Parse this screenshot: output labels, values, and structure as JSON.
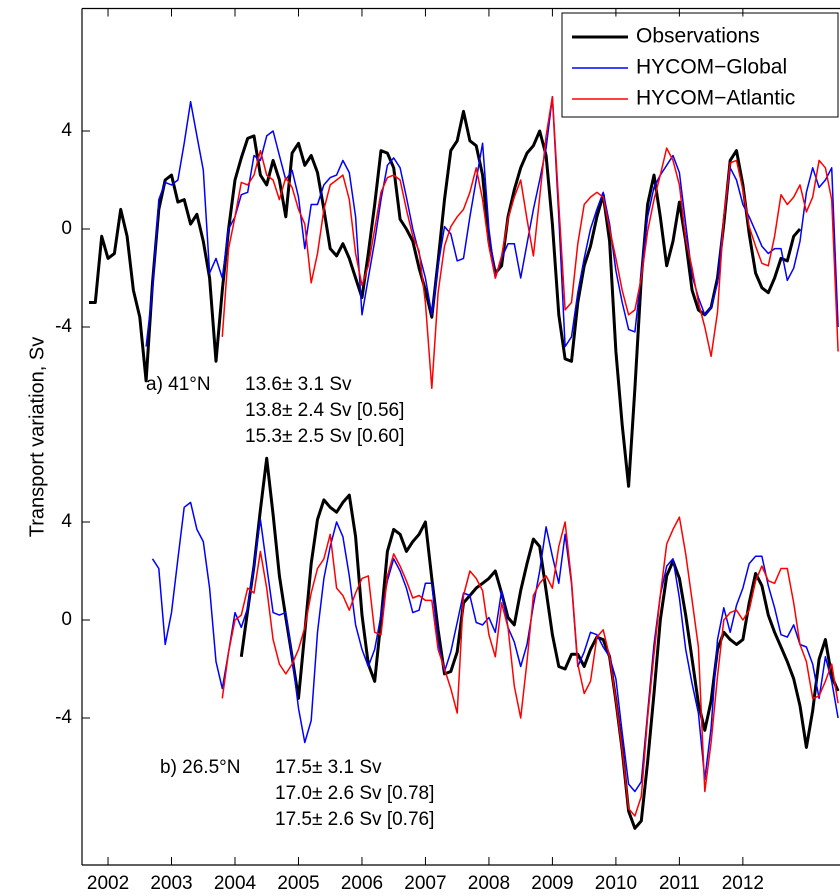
{
  "chart_data": [
    {
      "type": "line",
      "ylabel": "Transport variation, Sv",
      "legend": "upper right",
      "label": "a) 41°N",
      "annotations": [
        {
          "text": "13.6± 3.1 Sv",
          "color": "#000000"
        },
        {
          "text": "13.8± 2.4 Sv [0.56]",
          "color": "#0000ff"
        },
        {
          "text": "15.3± 2.5 Sv [0.60]",
          "color": "#ff0000"
        }
      ],
      "xlim": [
        2001.59,
        2013.53
      ],
      "ylim": [
        -8,
        9
      ],
      "yticks": [
        -4,
        0,
        4
      ],
      "x": [
        2001.6,
        2001.7,
        2001.8,
        2001.9,
        2002,
        2002.1,
        2002.2,
        2002.3,
        2002.4,
        2002.5,
        2002.6,
        2002.7,
        2002.8,
        2002.9,
        2003,
        2003.1,
        2003.2,
        2003.3,
        2003.4,
        2003.5,
        2003.6,
        2003.7,
        2003.8,
        2003.9,
        2004,
        2004.1,
        2004.2,
        2004.3,
        2004.4,
        2004.5,
        2004.6,
        2004.7,
        2004.8,
        2004.9,
        2005,
        2005.1,
        2005.2,
        2005.3,
        2005.4,
        2005.5,
        2005.6,
        2005.7,
        2005.8,
        2005.9,
        2006,
        2006.1,
        2006.2,
        2006.3,
        2006.4,
        2006.5,
        2006.6,
        2006.7,
        2006.8,
        2006.9,
        2007,
        2007.1,
        2007.2,
        2007.3,
        2007.4,
        2007.5,
        2007.6,
        2007.7,
        2007.8,
        2007.9,
        2008,
        2008.1,
        2008.2,
        2008.3,
        2008.4,
        2008.5,
        2008.6,
        2008.7,
        2008.8,
        2008.9,
        2009,
        2009.1,
        2009.2,
        2009.3,
        2009.4,
        2009.5,
        2009.6,
        2009.7,
        2009.8,
        2009.9,
        2010,
        2010.1,
        2010.2,
        2010.3,
        2010.4,
        2010.5,
        2010.6,
        2010.7,
        2010.8,
        2010.9,
        2011,
        2011.1,
        2011.2,
        2011.3,
        2011.4,
        2011.5,
        2011.6,
        2011.7,
        2011.8,
        2011.9,
        2012,
        2012.1,
        2012.2,
        2012.3,
        2012.4,
        2012.5,
        2012.6,
        2012.7,
        2012.8,
        2012.9,
        2013,
        2013.1,
        2013.2,
        2013.3,
        2013.4,
        2013.5
      ],
      "series": [
        {
          "name": "Observations",
          "color": "#000000",
          "width": 3,
          "values": [
            null,
            -3,
            -3,
            -0.3,
            -1.2,
            -1,
            0.8,
            -0.3,
            -2.5,
            -3.6,
            -6.2,
            -2.2,
            0.8,
            2,
            2.2,
            1.1,
            1.2,
            0.2,
            0.6,
            -0.5,
            -2,
            -5.4,
            -2.5,
            0,
            2,
            2.9,
            3.7,
            3.8,
            2.2,
            1.8,
            2.8,
            2,
            0.5,
            3.1,
            3.5,
            2.6,
            3,
            2.3,
            0.8,
            -0.8,
            -1.1,
            -0.6,
            -1.2,
            -2,
            -2.8,
            -1,
            1,
            3.2,
            3.1,
            2.5,
            0.4,
            0,
            -0.5,
            -1.6,
            -2.5,
            -3.6,
            -1.3,
            1.2,
            3.2,
            3.6,
            4.8,
            3.6,
            3.4,
            2.2,
            -0.5,
            -1.8,
            -1.5,
            0.5,
            1.6,
            2.5,
            3.1,
            3.4,
            4,
            3,
            0.2,
            -3.5,
            -5.3,
            -5.4,
            -3,
            -1.5,
            -0.7,
            0.5,
            1.4,
            -0.5,
            -5,
            -8,
            -10.5,
            -6.5,
            -2,
            1,
            2.2,
            0.5,
            -1.5,
            -0.5,
            1.1,
            -0.5,
            -2.5,
            -3.3,
            -3.5,
            -3.2,
            -2,
            0.2,
            2.8,
            3.2,
            1.8,
            -0.2,
            -1.8,
            -2.4,
            -2.6,
            -2,
            -1.2,
            -1.3,
            -0.3,
            0,
            null,
            null,
            null,
            null,
            null,
            null
          ]
        },
        {
          "name": "HYCOM−Global",
          "color": "#0000ff",
          "width": 1.5,
          "values": [
            null,
            null,
            null,
            null,
            null,
            null,
            null,
            null,
            null,
            null,
            -4.8,
            -2.5,
            1.2,
            1.9,
            1.8,
            2,
            3.5,
            5.2,
            3.8,
            2.4,
            -1.8,
            -1.2,
            -2,
            0,
            0.5,
            1.4,
            1.5,
            3,
            2.8,
            3.8,
            4,
            3,
            2,
            2.4,
            1.3,
            -0.8,
            1,
            1,
            1.8,
            2.1,
            2.2,
            2.8,
            2.3,
            0.5,
            -3.5,
            -2,
            -0.5,
            1.2,
            2.6,
            2.9,
            2.5,
            1.3,
            0,
            -1,
            -2,
            -3.5,
            -1.5,
            0.1,
            -0.2,
            -1.3,
            -1.2,
            0.5,
            2,
            3.5,
            0,
            -2,
            -1.2,
            -0.6,
            -0.6,
            -2,
            -0.6,
            0.8,
            2,
            3.3,
            5.4,
            0.5,
            -4.8,
            -4.4,
            -2.6,
            -1.2,
            0,
            0.8,
            1.5,
            0.2,
            -1.7,
            -3,
            -4.1,
            -4.2,
            -1.8,
            0.5,
            1.7,
            2.2,
            2.6,
            3,
            2.3,
            0.2,
            -1.9,
            -2.8,
            -3.5,
            -3.2,
            -2.2,
            0.5,
            2.5,
            2,
            1,
            0.5,
            -0.1,
            -0.7,
            -1,
            -0.8,
            -0.8,
            -2.1,
            -1.6,
            -0.5,
            1.5,
            2.5,
            1.7,
            2,
            2.5,
            -4
          ]
        },
        {
          "name": "HYCOM−Atlantic",
          "color": "#ff0000",
          "width": 1.5,
          "values": [
            null,
            null,
            null,
            null,
            null,
            null,
            null,
            null,
            null,
            null,
            null,
            null,
            null,
            null,
            null,
            null,
            null,
            null,
            null,
            null,
            null,
            null,
            -4.4,
            -0.8,
            0.5,
            1.9,
            1.8,
            2.2,
            3.2,
            2.2,
            2,
            1.2,
            2.1,
            1.7,
            0.8,
            0.2,
            -2.2,
            -1,
            0.8,
            1.8,
            2,
            2.2,
            1.2,
            -1,
            -2.3,
            -1.5,
            0,
            1.5,
            2.1,
            2.2,
            2,
            0.8,
            -0.3,
            -0.9,
            -3,
            -6.5,
            -2.6,
            -0.7,
            0.1,
            0.5,
            0.8,
            1.5,
            2.5,
            1.2,
            -0.7,
            -2,
            -1.1,
            0.4,
            1.3,
            2,
            0.4,
            -1.1,
            1.3,
            3.8,
            5.4,
            1,
            -3.3,
            -3,
            -0.6,
            1,
            1.3,
            1.5,
            1.3,
            0,
            -1.2,
            -2.5,
            -3.5,
            -3.3,
            -2,
            -0.1,
            1.2,
            2.2,
            3.3,
            2.8,
            1.8,
            -0.4,
            -1.6,
            -3,
            -4,
            -5.2,
            -3.4,
            0.5,
            2.7,
            2.8,
            1.6,
            0.1,
            -0.7,
            -1.4,
            -1.5,
            -0.3,
            1.4,
            1,
            1.3,
            1.8,
            0.7,
            1.3,
            2.8,
            2.5,
            1.2,
            -5
          ]
        }
      ]
    },
    {
      "type": "line",
      "label": "b) 26.5°N",
      "annotations": [
        {
          "text": "17.5± 3.1 Sv",
          "color": "#000000"
        },
        {
          "text": "17.0± 2.6 Sv [0.78]",
          "color": "#0000ff"
        },
        {
          "text": "17.5± 2.6 Sv [0.76]",
          "color": "#ff0000"
        }
      ],
      "xlim": [
        2001.59,
        2013.53
      ],
      "xticks": [
        2002,
        2003,
        2004,
        2005,
        2006,
        2007,
        2008,
        2009,
        2010,
        2011,
        2012
      ],
      "ylim": [
        -10,
        8
      ],
      "yticks": [
        -4,
        0,
        4
      ],
      "x": [
        2001.6,
        2001.7,
        2001.8,
        2001.9,
        2002,
        2002.1,
        2002.2,
        2002.3,
        2002.4,
        2002.5,
        2002.6,
        2002.7,
        2002.8,
        2002.9,
        2003,
        2003.1,
        2003.2,
        2003.3,
        2003.4,
        2003.5,
        2003.6,
        2003.7,
        2003.8,
        2003.9,
        2004,
        2004.1,
        2004.2,
        2004.3,
        2004.4,
        2004.5,
        2004.6,
        2004.7,
        2004.8,
        2004.9,
        2005,
        2005.1,
        2005.2,
        2005.3,
        2005.4,
        2005.5,
        2005.6,
        2005.7,
        2005.8,
        2005.9,
        2006,
        2006.1,
        2006.2,
        2006.3,
        2006.4,
        2006.5,
        2006.6,
        2006.7,
        2006.8,
        2006.9,
        2007,
        2007.1,
        2007.2,
        2007.3,
        2007.4,
        2007.5,
        2007.6,
        2007.7,
        2007.8,
        2007.9,
        2008,
        2008.1,
        2008.2,
        2008.3,
        2008.4,
        2008.5,
        2008.6,
        2008.7,
        2008.8,
        2008.9,
        2009,
        2009.1,
        2009.2,
        2009.3,
        2009.4,
        2009.5,
        2009.6,
        2009.7,
        2009.8,
        2009.9,
        2010,
        2010.1,
        2010.2,
        2010.3,
        2010.4,
        2010.5,
        2010.6,
        2010.7,
        2010.8,
        2010.9,
        2011,
        2011.1,
        2011.2,
        2011.3,
        2011.4,
        2011.5,
        2011.6,
        2011.7,
        2011.8,
        2011.9,
        2012,
        2012.1,
        2012.2,
        2012.3,
        2012.4,
        2012.5,
        2012.6,
        2012.7,
        2012.8,
        2012.9,
        2013,
        2013.1,
        2013.2,
        2013.3,
        2013.4,
        2013.5
      ],
      "series": [
        {
          "color": "#000000",
          "width": 3,
          "values": [
            null,
            null,
            null,
            null,
            null,
            null,
            null,
            null,
            null,
            null,
            null,
            null,
            null,
            null,
            null,
            null,
            null,
            null,
            null,
            null,
            null,
            null,
            null,
            null,
            null,
            -1.5,
            0.4,
            2.2,
            4.5,
            6.6,
            4.3,
            1.8,
            0.1,
            -1.5,
            -3.2,
            -0.5,
            2.3,
            4.1,
            4.9,
            4.6,
            4.4,
            4.8,
            5.1,
            3.4,
            0.2,
            -1.8,
            -2.5,
            0,
            2.8,
            3.7,
            3.5,
            2.8,
            3.2,
            3.5,
            4,
            1.7,
            -0.4,
            -2.2,
            -2.1,
            -1.3,
            0.7,
            1,
            1.3,
            1.5,
            1.7,
            2,
            1.1,
            0.1,
            -0.2,
            1.2,
            2.3,
            3.3,
            3,
            1.2,
            -0.6,
            -1.9,
            -2,
            -1.4,
            -1.4,
            -1.9,
            -1.2,
            -0.7,
            -0.8,
            -1.5,
            -3.3,
            -5.3,
            -7.8,
            -8.5,
            -8.2,
            -5.8,
            -3,
            0,
            1.8,
            2.4,
            1.7,
            0.2,
            -1.6,
            -3.4,
            -4.5,
            -3.3,
            -1.2,
            -0.5,
            -0.8,
            -1,
            -0.8,
            0.7,
            1.9,
            1.4,
            0.2,
            -0.5,
            -1.1,
            -1.7,
            -2.4,
            -3.5,
            -5.2,
            -3.7,
            -1.6,
            -0.8,
            -2.3,
            -2.9
          ]
        },
        {
          "color": "#0000ff",
          "width": 1.5,
          "values": [
            null,
            null,
            null,
            null,
            null,
            null,
            null,
            null,
            null,
            null,
            null,
            2.5,
            2.1,
            -1,
            0.3,
            2.5,
            4.6,
            4.8,
            3.7,
            3.2,
            1.3,
            -1.7,
            -2.8,
            -1.3,
            0.3,
            -0.3,
            0.5,
            2.2,
            4.1,
            2.2,
            0.3,
            0.2,
            0.3,
            -1.5,
            -3.6,
            -5,
            -4.1,
            -0.5,
            1.7,
            3,
            4,
            3.4,
            1.8,
            -0.2,
            -1.2,
            -1.9,
            -1.2,
            0.2,
            1.6,
            2.5,
            2,
            1.3,
            0.3,
            0.4,
            1.5,
            1.5,
            -0.9,
            -2.1,
            -1.3,
            -0.1,
            1.1,
            1,
            -0.1,
            -0.2,
            0.1,
            -0.5,
            1.2,
            -0.3,
            -0.9,
            -1.9,
            -1,
            0.6,
            2,
            3.8,
            2.6,
            1.5,
            3.5,
            1.5,
            -1.9,
            -1.3,
            -0.5,
            -0.6,
            -1.1,
            -1.5,
            -2.4,
            -4.6,
            -6.7,
            -7,
            -6.6,
            -3.8,
            -1,
            1,
            2.2,
            2.5,
            0.9,
            -1.2,
            -2.6,
            -3.8,
            -6.5,
            -4.4,
            -0.8,
            0.5,
            -0.5,
            0.6,
            1.3,
            2.3,
            2.6,
            2.6,
            1.4,
            0.5,
            -0.6,
            -0.7,
            -0.2,
            -1,
            -1.1,
            -1.8,
            -3.2,
            -1.5,
            -2.5,
            -4
          ]
        },
        {
          "color": "#ff0000",
          "width": 1.5,
          "values": [
            null,
            null,
            null,
            null,
            null,
            null,
            null,
            null,
            null,
            null,
            null,
            null,
            null,
            null,
            null,
            null,
            null,
            null,
            null,
            null,
            null,
            null,
            -3.2,
            -1.3,
            0,
            0.2,
            1.3,
            1.1,
            2.8,
            1.3,
            -0.8,
            -1.8,
            -2.2,
            -1.8,
            -1.2,
            -0.3,
            1.1,
            2.1,
            2.5,
            3.5,
            1.3,
            1,
            0.4,
            1.1,
            1.7,
            1.8,
            -0.5,
            -0.6,
            1.8,
            2.7,
            2.2,
            1.6,
            0.9,
            1,
            0.8,
            0.8,
            -1.2,
            -2,
            -2.8,
            -3.8,
            1,
            2,
            1.7,
            1.2,
            -0.6,
            -1.5,
            0.7,
            -0.3,
            -2.7,
            -4,
            -1.7,
            1,
            1.5,
            1.8,
            1.3,
            3,
            4,
            1.6,
            -1.8,
            -3,
            -2.5,
            -0.7,
            -0.4,
            -1.5,
            -3.3,
            -5.3,
            -7.7,
            -8,
            -7.2,
            -4,
            -1.4,
            1,
            3.1,
            3.7,
            4.2,
            2.7,
            0.8,
            -1.1,
            -7,
            -5,
            -2.3,
            0,
            0.3,
            0.4,
            0,
            0.4,
            1.6,
            2.2,
            1.6,
            1.5,
            2.1,
            2.1,
            0.7,
            -1,
            -1.7,
            -3.2,
            -3.1,
            -2.5,
            -1.8,
            -3.4
          ]
        }
      ]
    }
  ]
}
